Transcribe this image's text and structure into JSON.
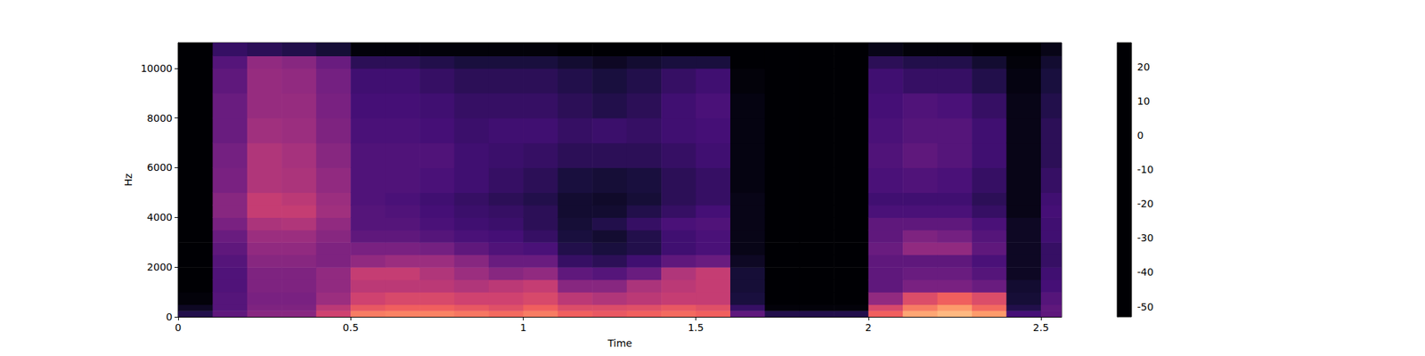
{
  "chart_data": {
    "type": "heatmap",
    "xlabel": "Time",
    "ylabel": "Hz",
    "xlim": [
      0,
      2.56
    ],
    "ylim": [
      0,
      11025
    ],
    "xticks": [
      0,
      0.5,
      1,
      1.5,
      2,
      2.5
    ],
    "yticks": [
      0,
      2000,
      4000,
      6000,
      8000,
      10000
    ],
    "x_edges": [
      0,
      0.1,
      0.2,
      0.3,
      0.4,
      0.5,
      0.6,
      0.7,
      0.8,
      0.9,
      1.0,
      1.1,
      1.2,
      1.3,
      1.4,
      1.5,
      1.6,
      1.7,
      1.8,
      1.9,
      2.0,
      2.1,
      2.2,
      2.3,
      2.4,
      2.5,
      2.56
    ],
    "y_edges": [
      0,
      250,
      500,
      1000,
      1500,
      2000,
      2500,
      3000,
      3500,
      4000,
      4500,
      5000,
      6000,
      7000,
      8000,
      9000,
      10000,
      10500,
      11025
    ],
    "values": [
      [
        -42,
        -48,
        -52,
        -53,
        -53,
        -53,
        -53,
        -53,
        -53,
        -53,
        -53,
        -53,
        -53,
        -53,
        -53,
        -53,
        -53,
        -53
      ],
      [
        -30,
        -32,
        -32,
        -33,
        -33,
        -32,
        -30,
        -28,
        -25,
        -22,
        -22,
        -25,
        -26,
        -28,
        -28,
        -30,
        -32,
        -38
      ],
      [
        -22,
        -24,
        -25,
        -24,
        -24,
        -22,
        -20,
        -18,
        -15,
        -10,
        -10,
        -14,
        -14,
        -17,
        -19,
        -19,
        -20,
        -40
      ],
      [
        -22,
        -24,
        -25,
        -24,
        -24,
        -22,
        -20,
        -18,
        -14,
        -10,
        -12,
        -15,
        -16,
        -18,
        -19,
        -20,
        -22,
        -42
      ],
      [
        -8,
        -12,
        -18,
        -20,
        -20,
        -24,
        -24,
        -22,
        -20,
        -17,
        -18,
        -20,
        -22,
        -24,
        -25,
        -26,
        -28,
        -45
      ],
      [
        5,
        -2,
        -8,
        -12,
        -10,
        -20,
        -25,
        -30,
        -32,
        -32,
        -33,
        -33,
        -33,
        -34,
        -35,
        -36,
        -40,
        -52
      ],
      [
        6,
        0,
        -6,
        -12,
        -10,
        -18,
        -25,
        -30,
        -32,
        -33,
        -34,
        -33,
        -33,
        -34,
        -35,
        -36,
        -40,
        -52
      ],
      [
        6,
        0,
        -6,
        -12,
        -14,
        -18,
        -26,
        -32,
        -34,
        -35,
        -36,
        -34,
        -33,
        -35,
        -36,
        -38,
        -42,
        -52
      ],
      [
        4,
        -2,
        -8,
        -14,
        -18,
        -22,
        -30,
        -34,
        -36,
        -37,
        -38,
        -36,
        -36,
        -37,
        -38,
        -40,
        -44,
        -52
      ],
      [
        2,
        -4,
        -8,
        -12,
        -22,
        -28,
        -33,
        -35,
        -37,
        -38,
        -40,
        -38,
        -37,
        -36,
        -38,
        -40,
        -44,
        -52
      ],
      [
        5,
        0,
        -6,
        -10,
        -20,
        -28,
        -34,
        -38,
        -40,
        -40,
        -42,
        -40,
        -38,
        -36,
        -38,
        -40,
        -44,
        -52
      ],
      [
        0,
        -5,
        -12,
        -22,
        -30,
        -38,
        -42,
        -44,
        -45,
        -46,
        -46,
        -44,
        -40,
        -38,
        -40,
        -42,
        -46,
        -53
      ],
      [
        -2,
        -5,
        -14,
        -22,
        -32,
        -40,
        -44,
        -46,
        -42,
        -46,
        -47,
        -45,
        -40,
        -37,
        -42,
        -44,
        -48,
        -53
      ],
      [
        0,
        -4,
        -12,
        -15,
        -28,
        -36,
        -42,
        -42,
        -38,
        -42,
        -45,
        -44,
        -40,
        -38,
        -40,
        -42,
        -46,
        -53
      ],
      [
        2,
        -2,
        -10,
        -12,
        -14,
        -30,
        -36,
        -36,
        -34,
        -38,
        -40,
        -40,
        -38,
        -36,
        -36,
        -38,
        -44,
        -53
      ],
      [
        0,
        -4,
        -10,
        -10,
        -10,
        -28,
        -34,
        -34,
        -33,
        -35,
        -38,
        -38,
        -36,
        -35,
        -34,
        -36,
        -44,
        -53
      ],
      [
        -30,
        -38,
        -44,
        -45,
        -45,
        -48,
        -50,
        -50,
        -50,
        -50,
        -50,
        -51,
        -51,
        -51,
        -51,
        -52,
        -53,
        -53
      ],
      [
        -42,
        -52,
        -53,
        -53,
        -53,
        -53,
        -53,
        -53,
        -53,
        -53,
        -53,
        -53,
        -53,
        -53,
        -53,
        -53,
        -53,
        -53
      ],
      [
        -42,
        -52,
        -53,
        -53,
        -53,
        -53,
        -53,
        -53,
        -53,
        -53,
        -53,
        -53,
        -53,
        -53,
        -53,
        -53,
        -53,
        -53
      ],
      [
        -42,
        -52,
        -53,
        -53,
        -53,
        -53,
        -53,
        -53,
        -53,
        -53,
        -53,
        -53,
        -53,
        -53,
        -53,
        -53,
        -53,
        -53
      ],
      [
        0,
        -6,
        -20,
        -30,
        -30,
        -30,
        -28,
        -30,
        -30,
        -34,
        -36,
        -34,
        -33,
        -34,
        -35,
        -36,
        -40,
        -50
      ],
      [
        12,
        5,
        -5,
        -25,
        -28,
        -30,
        -20,
        -24,
        -30,
        -34,
        -36,
        -33,
        -30,
        -32,
        -33,
        -38,
        -42,
        -52
      ],
      [
        15,
        10,
        0,
        -25,
        -28,
        -30,
        -20,
        -26,
        -30,
        -34,
        -36,
        -34,
        -32,
        -32,
        -34,
        -38,
        -42,
        -52
      ],
      [
        10,
        2,
        -5,
        -28,
        -32,
        -34,
        -30,
        -32,
        -34,
        -38,
        -40,
        -38,
        -36,
        -36,
        -38,
        -42,
        -46,
        -53
      ],
      [
        -35,
        -42,
        -45,
        -46,
        -48,
        -48,
        -48,
        -48,
        -48,
        -50,
        -50,
        -50,
        -50,
        -50,
        -50,
        -51,
        -52,
        -53
      ],
      [
        -30,
        -30,
        -32,
        -35,
        -36,
        -38,
        -38,
        -36,
        -36,
        -35,
        -36,
        -38,
        -40,
        -40,
        -42,
        -44,
        -46,
        -50
      ]
    ],
    "colorbar": {
      "range": [
        -53,
        27
      ],
      "ticks": [
        -50,
        -40,
        -30,
        -20,
        -10,
        0,
        10,
        20
      ]
    }
  }
}
